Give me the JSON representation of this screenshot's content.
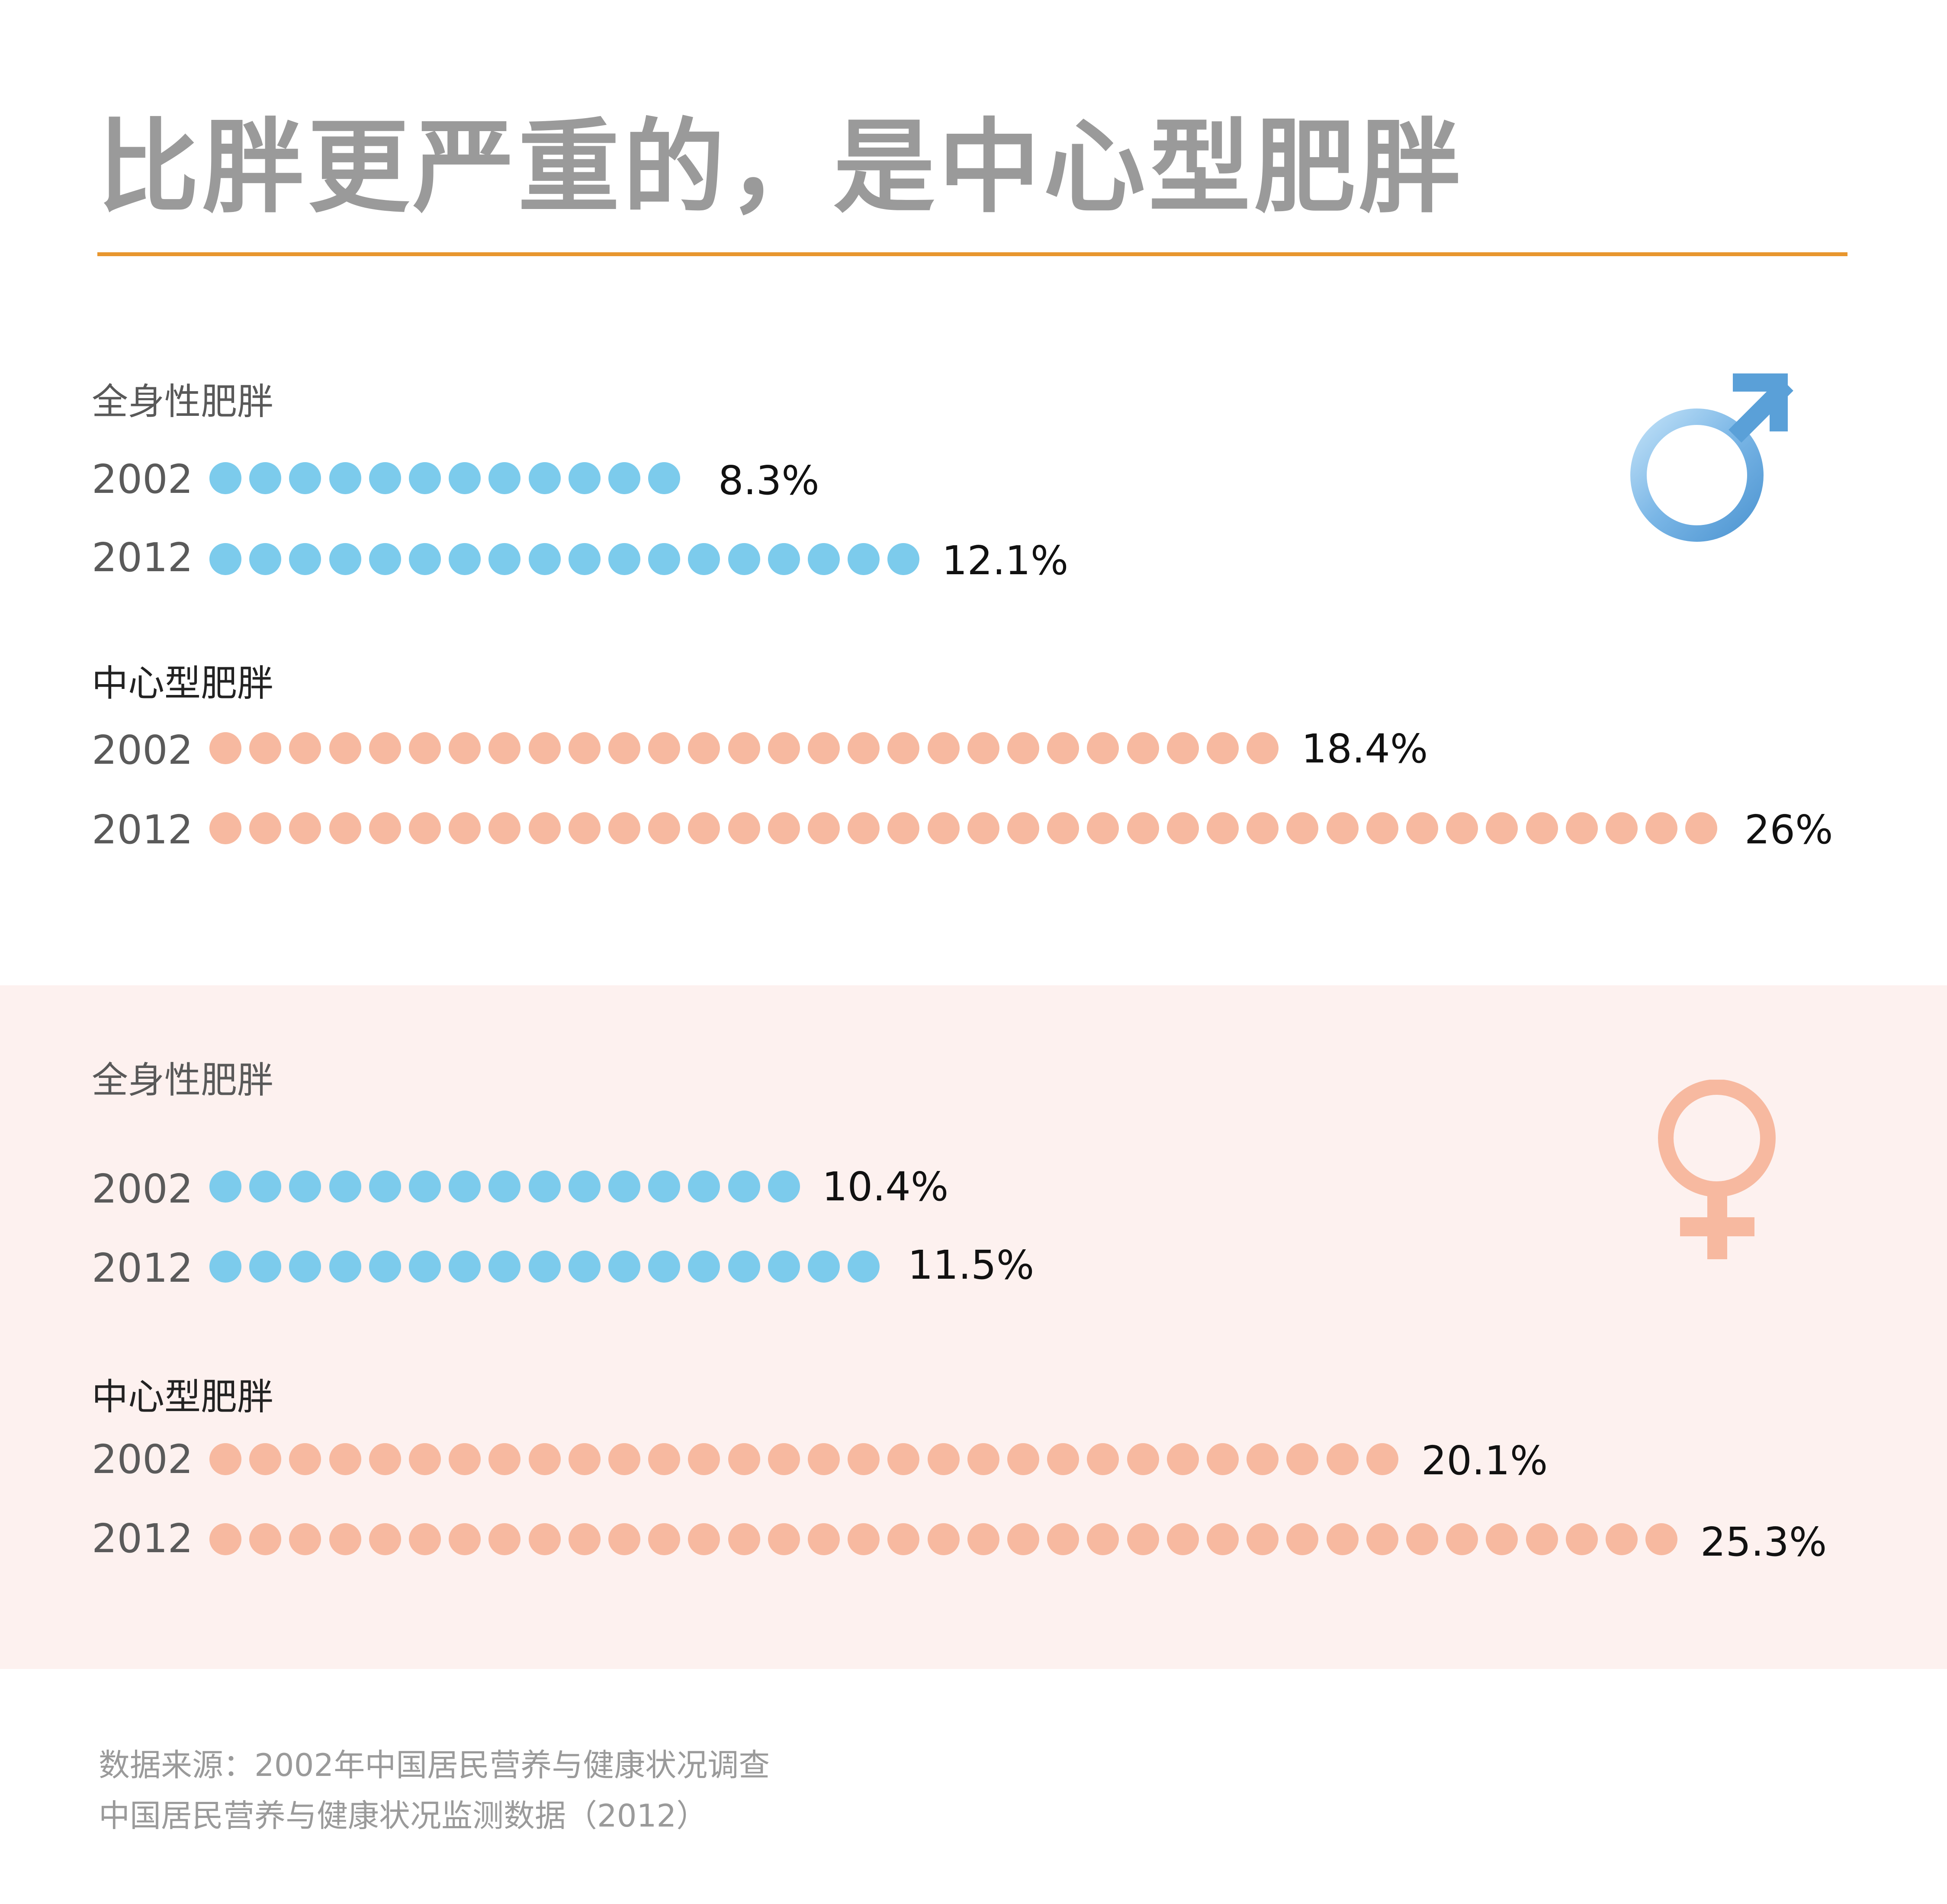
{
  "title": "比胖更严重的，是中心型肥胖",
  "colors": {
    "title": "#9a9a9a",
    "accent_rule": "#e8962e",
    "general_obesity_dot": "#7ccbec",
    "central_obesity_dot": "#f7b9a0",
    "female_band": "#fdf1ef",
    "male_icon": "#5aa0d8",
    "female_icon": "#f7b9a0"
  },
  "icons": {
    "male": "male-symbol-icon",
    "female": "female-symbol-icon"
  },
  "chart_data": [
    {
      "type": "dot-bar",
      "panel": "male",
      "groups": [
        {
          "label": "全身性肥胖",
          "rows": [
            {
              "year": "2002",
              "value": 8.3,
              "value_label": "8.3%",
              "dots": 12
            },
            {
              "year": "2012",
              "value": 12.1,
              "value_label": "12.1%",
              "dots": 18
            }
          ]
        },
        {
          "label": "中心型肥胖",
          "rows": [
            {
              "year": "2002",
              "value": 18.4,
              "value_label": "18.4%",
              "dots": 27
            },
            {
              "year": "2012",
              "value": 26,
              "value_label": "26%",
              "dots": 38
            }
          ]
        }
      ]
    },
    {
      "type": "dot-bar",
      "panel": "female",
      "groups": [
        {
          "label": "全身性肥胖",
          "rows": [
            {
              "year": "2002",
              "value": 10.4,
              "value_label": "10.4%",
              "dots": 15
            },
            {
              "year": "2012",
              "value": 11.5,
              "value_label": "11.5%",
              "dots": 17
            }
          ]
        },
        {
          "label": "中心型肥胖",
          "rows": [
            {
              "year": "2002",
              "value": 20.1,
              "value_label": "20.1%",
              "dots": 30
            },
            {
              "year": "2012",
              "value": 25.3,
              "value_label": "25.3%",
              "dots": 37
            }
          ]
        }
      ]
    }
  ],
  "source": {
    "line1": "数据来源：2002年中国居民营养与健康状况调查",
    "line2": "中国居民营养与健康状况监测数据（2012）"
  }
}
